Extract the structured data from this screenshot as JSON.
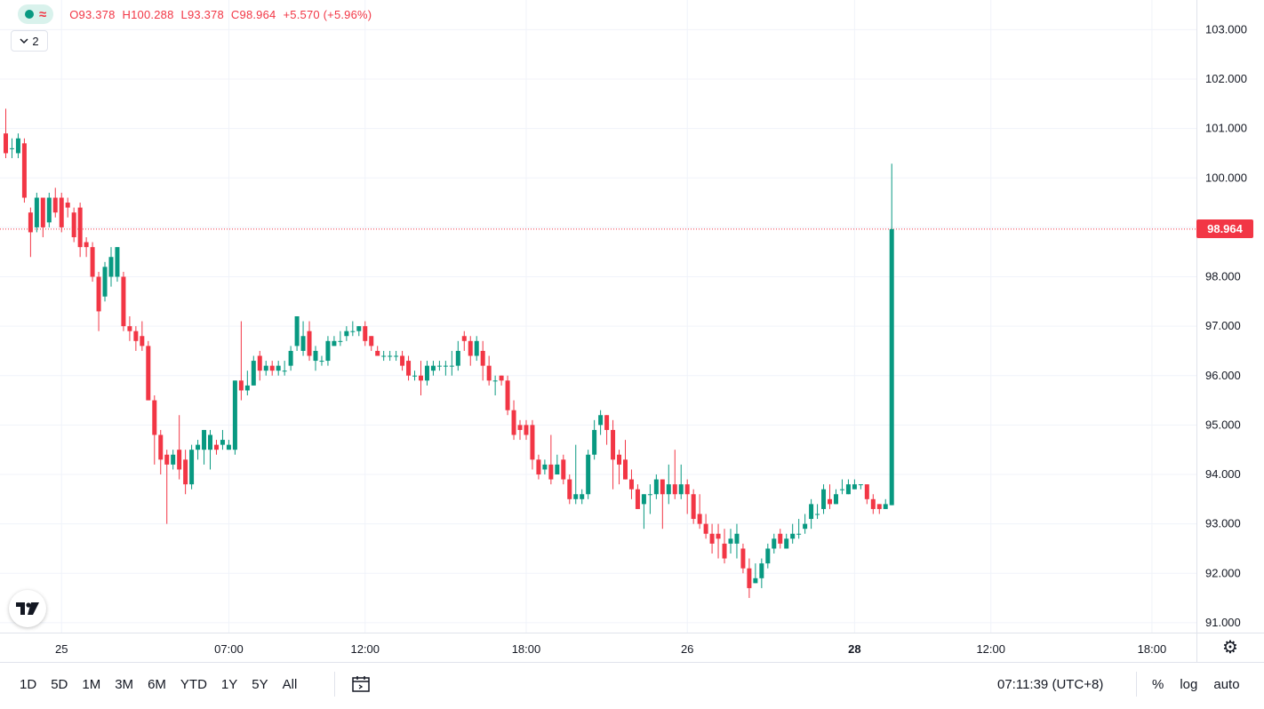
{
  "legend": {
    "O_label": "O",
    "O": "93.378",
    "H_label": "H",
    "H": "100.288",
    "L_label": "L",
    "L": "93.378",
    "C_label": "C",
    "C": "98.964",
    "change": "+5.570 (+5.96%)",
    "collapse_count": "2"
  },
  "last_price_label": "98.964",
  "bottom_bar": {
    "ranges": [
      "1D",
      "5D",
      "1M",
      "3M",
      "6M",
      "YTD",
      "1Y",
      "5Y",
      "All"
    ],
    "clock": "07:11:39 (UTC+8)",
    "percent": "%",
    "log": "log",
    "auto": "auto"
  },
  "colors": {
    "up": "#089981",
    "down": "#f23645",
    "grid": "#f0f3fa",
    "last_price_line": "#f23645"
  },
  "icons": {
    "logo": "tradingview-logo-icon",
    "settings": "gear-icon",
    "compare": "calendar-range-icon"
  },
  "chart_data": {
    "type": "candlestick",
    "ylim": [
      90.8,
      103.6
    ],
    "y_ticks": [
      "103.000",
      "102.000",
      "101.000",
      "100.000",
      "99.000",
      "98.000",
      "97.000",
      "96.000",
      "95.000",
      "94.000",
      "93.000",
      "92.000",
      "91.000"
    ],
    "x_ticks": [
      {
        "label": "25",
        "i": 9
      },
      {
        "label": "07:00",
        "i": 36
      },
      {
        "label": "12:00",
        "i": 58
      },
      {
        "label": "18:00",
        "i": 84
      },
      {
        "label": "26",
        "i": 110
      },
      {
        "label": "28",
        "i": 137,
        "bold": true
      },
      {
        "label": "12:00",
        "i": 159
      },
      {
        "label": "18:00",
        "i": 185
      }
    ],
    "last_price": 98.964,
    "candles": [
      [
        100.9,
        100.5,
        101.4,
        100.4
      ],
      [
        100.6,
        100.6,
        100.8,
        100.4
      ],
      [
        100.5,
        100.8,
        100.9,
        100.4
      ],
      [
        100.7,
        99.6,
        100.8,
        99.5
      ],
      [
        99.3,
        98.9,
        99.4,
        98.4
      ],
      [
        99.0,
        99.6,
        99.7,
        98.9
      ],
      [
        99.6,
        99.0,
        99.6,
        98.8
      ],
      [
        99.1,
        99.6,
        99.7,
        99.0
      ],
      [
        99.6,
        99.3,
        99.8,
        99.2
      ],
      [
        99.6,
        99.0,
        99.7,
        98.9
      ],
      [
        99.5,
        99.4,
        99.6,
        99.2
      ],
      [
        99.3,
        98.8,
        99.4,
        98.7
      ],
      [
        99.4,
        98.6,
        99.5,
        98.4
      ],
      [
        98.7,
        98.6,
        98.8,
        98.4
      ],
      [
        98.6,
        98.0,
        98.7,
        97.9
      ],
      [
        98.0,
        97.3,
        98.1,
        96.9
      ],
      [
        97.6,
        98.2,
        98.3,
        97.5
      ],
      [
        98.0,
        98.4,
        98.6,
        97.8
      ],
      [
        98.0,
        98.6,
        98.6,
        97.9
      ],
      [
        98.0,
        97.0,
        98.1,
        96.9
      ],
      [
        97.0,
        96.9,
        97.2,
        96.7
      ],
      [
        96.9,
        96.7,
        97.0,
        96.5
      ],
      [
        96.8,
        96.6,
        97.1,
        96.5
      ],
      [
        96.6,
        95.5,
        96.7,
        95.5
      ],
      [
        95.5,
        94.8,
        95.6,
        94.2
      ],
      [
        94.8,
        94.3,
        94.9,
        94.0
      ],
      [
        94.4,
        94.2,
        94.5,
        93.0
      ],
      [
        94.2,
        94.4,
        94.5,
        94.1
      ],
      [
        94.5,
        94.1,
        95.2,
        93.9
      ],
      [
        94.3,
        93.8,
        94.5,
        93.6
      ],
      [
        93.8,
        94.5,
        94.6,
        93.7
      ],
      [
        94.5,
        94.6,
        94.7,
        94.3
      ],
      [
        94.5,
        94.9,
        94.9,
        94.2
      ],
      [
        94.5,
        94.8,
        94.9,
        94.1
      ],
      [
        94.6,
        94.5,
        94.7,
        94.4
      ],
      [
        94.6,
        94.7,
        94.9,
        94.5
      ],
      [
        94.5,
        94.6,
        94.7,
        94.5
      ],
      [
        94.5,
        95.9,
        95.9,
        94.4
      ],
      [
        95.9,
        95.7,
        97.1,
        95.5
      ],
      [
        95.7,
        95.8,
        96.1,
        95.6
      ],
      [
        95.8,
        96.3,
        96.4,
        95.8
      ],
      [
        96.4,
        96.1,
        96.5,
        95.9
      ],
      [
        96.1,
        96.2,
        96.3,
        96.0
      ],
      [
        96.2,
        96.1,
        96.3,
        96.0
      ],
      [
        96.1,
        96.2,
        96.3,
        96.0
      ],
      [
        96.1,
        96.1,
        96.3,
        96.0
      ],
      [
        96.2,
        96.5,
        96.6,
        96.1
      ],
      [
        96.6,
        97.2,
        97.2,
        96.5
      ],
      [
        96.5,
        96.8,
        97.1,
        96.4
      ],
      [
        96.9,
        96.4,
        97.1,
        96.3
      ],
      [
        96.3,
        96.5,
        96.6,
        96.1
      ],
      [
        96.3,
        96.3,
        96.4,
        96.2
      ],
      [
        96.3,
        96.7,
        96.8,
        96.2
      ],
      [
        96.6,
        96.7,
        96.8,
        96.6
      ],
      [
        96.7,
        96.7,
        96.9,
        96.6
      ],
      [
        96.8,
        96.9,
        97.0,
        96.7
      ],
      [
        96.9,
        96.9,
        97.1,
        96.8
      ],
      [
        96.9,
        97.0,
        97.0,
        96.8
      ],
      [
        97.0,
        96.7,
        97.1,
        96.6
      ],
      [
        96.8,
        96.6,
        96.8,
        96.5
      ],
      [
        96.5,
        96.4,
        96.6,
        96.4
      ],
      [
        96.4,
        96.4,
        96.5,
        96.3
      ],
      [
        96.4,
        96.4,
        96.5,
        96.3
      ],
      [
        96.4,
        96.4,
        96.5,
        96.3
      ],
      [
        96.4,
        96.2,
        96.5,
        96.1
      ],
      [
        96.3,
        96.0,
        96.4,
        95.9
      ],
      [
        96.0,
        96.0,
        96.1,
        95.9
      ],
      [
        96.0,
        95.9,
        96.3,
        95.6
      ],
      [
        95.9,
        96.2,
        96.3,
        95.8
      ],
      [
        96.1,
        96.2,
        96.3,
        96.0
      ],
      [
        96.2,
        96.2,
        96.3,
        96.1
      ],
      [
        96.2,
        96.2,
        96.3,
        96.0
      ],
      [
        96.2,
        96.2,
        96.5,
        96.0
      ],
      [
        96.2,
        96.5,
        96.7,
        96.1
      ],
      [
        96.8,
        96.7,
        96.9,
        96.5
      ],
      [
        96.7,
        96.4,
        96.8,
        96.2
      ],
      [
        96.4,
        96.7,
        96.8,
        96.3
      ],
      [
        96.5,
        96.2,
        96.7,
        95.9
      ],
      [
        96.2,
        95.9,
        96.4,
        95.8
      ],
      [
        95.9,
        95.9,
        96.0,
        95.6
      ],
      [
        96.0,
        95.9,
        96.0,
        95.8
      ],
      [
        95.9,
        95.3,
        96.0,
        95.2
      ],
      [
        95.3,
        94.8,
        95.5,
        94.7
      ],
      [
        95.0,
        94.9,
        95.1,
        94.7
      ],
      [
        95.0,
        94.8,
        95.1,
        94.7
      ],
      [
        95.0,
        94.3,
        95.1,
        94.1
      ],
      [
        94.3,
        94.0,
        94.4,
        93.9
      ],
      [
        94.1,
        94.2,
        94.3,
        94.0
      ],
      [
        94.2,
        93.9,
        94.8,
        93.8
      ],
      [
        94.0,
        94.2,
        94.4,
        94.0
      ],
      [
        94.3,
        93.9,
        94.4,
        93.8
      ],
      [
        93.9,
        93.5,
        94.0,
        93.4
      ],
      [
        93.5,
        93.6,
        94.6,
        93.4
      ],
      [
        93.5,
        93.6,
        93.7,
        93.4
      ],
      [
        93.6,
        94.4,
        94.5,
        93.5
      ],
      [
        94.4,
        94.9,
        95.1,
        94.3
      ],
      [
        95.0,
        95.2,
        95.3,
        94.8
      ],
      [
        95.2,
        94.9,
        95.2,
        94.6
      ],
      [
        94.9,
        94.3,
        95.1,
        93.7
      ],
      [
        94.4,
        94.2,
        94.5,
        93.8
      ],
      [
        94.3,
        93.9,
        94.7,
        93.9
      ],
      [
        93.9,
        93.7,
        94.1,
        93.5
      ],
      [
        93.7,
        93.3,
        93.8,
        93.3
      ],
      [
        93.4,
        93.6,
        93.6,
        92.9
      ],
      [
        93.6,
        93.6,
        93.8,
        93.2
      ],
      [
        93.6,
        93.9,
        94.0,
        93.5
      ],
      [
        93.9,
        93.6,
        93.9,
        92.9
      ],
      [
        93.6,
        93.8,
        94.2,
        93.4
      ],
      [
        93.8,
        93.6,
        94.5,
        93.5
      ],
      [
        93.6,
        93.8,
        94.2,
        93.5
      ],
      [
        93.8,
        93.6,
        93.9,
        93.2
      ],
      [
        93.6,
        93.1,
        93.7,
        93.0
      ],
      [
        93.2,
        93.0,
        93.6,
        92.9
      ],
      [
        93.0,
        92.8,
        93.2,
        92.7
      ],
      [
        92.8,
        92.6,
        93.0,
        92.4
      ],
      [
        92.8,
        92.7,
        93.0,
        92.3
      ],
      [
        92.6,
        92.3,
        92.9,
        92.2
      ],
      [
        92.6,
        92.7,
        92.9,
        92.4
      ],
      [
        92.6,
        92.8,
        93.0,
        92.3
      ],
      [
        92.5,
        92.1,
        92.6,
        92.0
      ],
      [
        92.1,
        91.7,
        92.3,
        91.5
      ],
      [
        91.8,
        91.9,
        92.2,
        91.8
      ],
      [
        91.9,
        92.2,
        92.3,
        91.7
      ],
      [
        92.2,
        92.5,
        92.6,
        92.1
      ],
      [
        92.5,
        92.7,
        92.8,
        92.4
      ],
      [
        92.8,
        92.6,
        92.9,
        92.5
      ],
      [
        92.5,
        92.7,
        92.8,
        92.5
      ],
      [
        92.7,
        92.8,
        93.0,
        92.6
      ],
      [
        92.8,
        92.8,
        93.1,
        92.7
      ],
      [
        92.9,
        93.0,
        93.2,
        92.8
      ],
      [
        93.1,
        93.4,
        93.5,
        92.9
      ],
      [
        93.2,
        93.2,
        93.4,
        93.1
      ],
      [
        93.3,
        93.7,
        93.8,
        93.2
      ],
      [
        93.5,
        93.4,
        93.8,
        93.3
      ],
      [
        93.4,
        93.6,
        93.7,
        93.4
      ],
      [
        93.7,
        93.7,
        93.9,
        93.6
      ],
      [
        93.6,
        93.8,
        93.9,
        93.6
      ],
      [
        93.7,
        93.8,
        93.9,
        93.7
      ],
      [
        93.8,
        93.8,
        93.8,
        93.7
      ],
      [
        93.8,
        93.5,
        93.8,
        93.4
      ],
      [
        93.5,
        93.3,
        93.6,
        93.2
      ],
      [
        93.4,
        93.3,
        93.4,
        93.2
      ],
      [
        93.3,
        93.4,
        93.5,
        93.3
      ],
      [
        93.378,
        98.964,
        100.288,
        93.378
      ]
    ]
  }
}
